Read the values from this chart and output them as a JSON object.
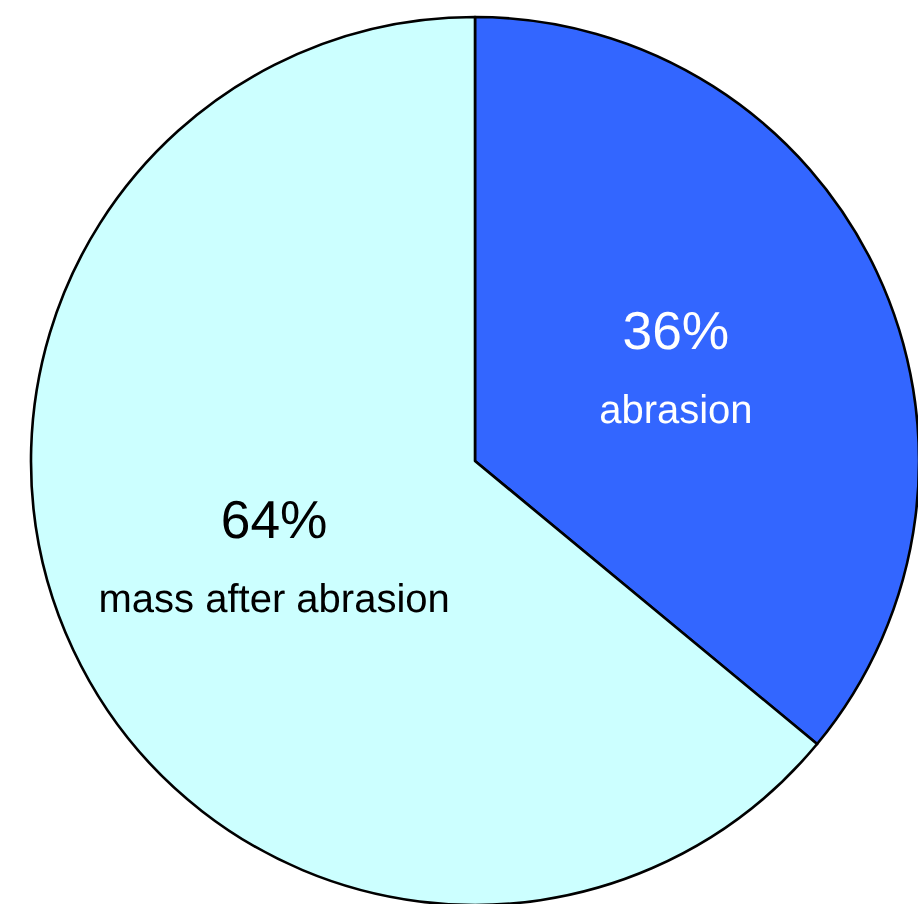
{
  "chart_data": {
    "type": "pie",
    "categories": [
      "abrasion",
      "mass after abrasion"
    ],
    "values": [
      36,
      64
    ],
    "colors": [
      "#3366ff",
      "#ccffff"
    ],
    "value_labels": [
      "36%",
      "64%"
    ]
  }
}
